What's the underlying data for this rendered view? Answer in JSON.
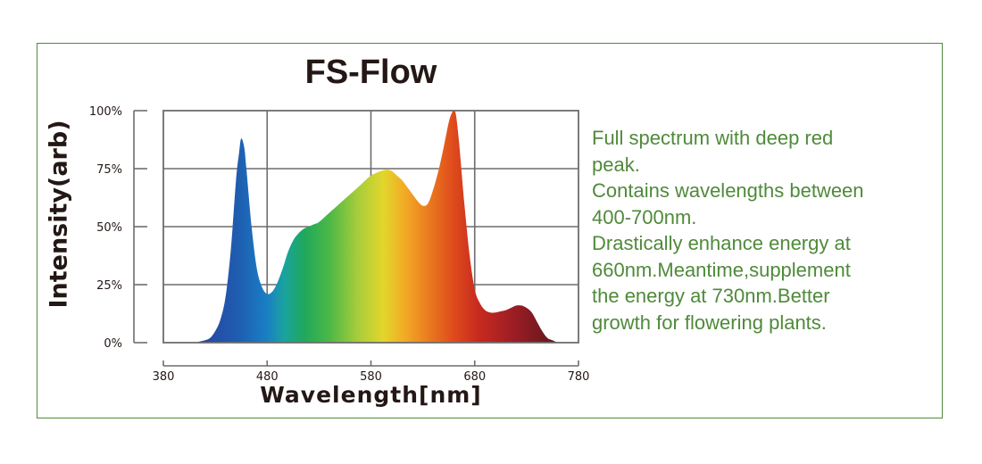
{
  "chart_data": {
    "type": "area",
    "title": "FS-Flow",
    "xlabel": "Wavelength[nm]",
    "ylabel": "Intensity(arb)",
    "xlim": [
      380,
      780
    ],
    "ylim": [
      0,
      100
    ],
    "xticks": [
      "380",
      "480",
      "580",
      "680",
      "780"
    ],
    "yticks": [
      "0%",
      "25%",
      "50%",
      "75%",
      "100%"
    ],
    "grid": true,
    "fill": "spectral-gradient",
    "series": [
      {
        "x": [
          410,
          415,
          420,
          425,
          430,
          435,
          440,
          445,
          450,
          453,
          455,
          458,
          460,
          465,
          470,
          475,
          480,
          485,
          490,
          495,
          500,
          505,
          510,
          515,
          520,
          525,
          530,
          540,
          550,
          560,
          570,
          580,
          590,
          595,
          600,
          605,
          610,
          615,
          620,
          625,
          630,
          635,
          640,
          645,
          650,
          655,
          658,
          660,
          662,
          665,
          670,
          675,
          680,
          685,
          690,
          695,
          700,
          705,
          710,
          715,
          720,
          725,
          730,
          735,
          740,
          745,
          750,
          755,
          760
        ],
        "y": [
          0,
          0.5,
          1,
          2,
          5,
          10,
          20,
          40,
          70,
          82,
          88,
          84,
          75,
          50,
          32,
          24,
          21,
          22,
          26,
          32,
          39,
          44,
          47,
          49,
          50,
          51,
          52,
          56,
          60,
          64,
          68,
          72,
          74,
          74.5,
          74,
          72,
          70,
          67,
          64,
          61,
          59,
          60,
          66,
          74,
          84,
          95,
          99,
          100,
          98,
          86,
          60,
          38,
          23,
          17,
          14,
          13,
          13,
          13.5,
          14,
          15,
          16,
          16,
          15,
          13,
          9,
          5,
          2,
          1,
          0
        ]
      }
    ]
  },
  "description": [
    "Full spectrum with deep red",
    "peak.",
    "Contains wavelengths between",
    "400-700nm.",
    "Drastically enhance energy at",
    "660nm.Meantime,supplement",
    "the energy at 730nm.Better",
    "growth for flowering plants."
  ],
  "colors": {
    "frame_border": "#4f8a3a",
    "description_text": "#4f8a3a",
    "grid": "#6d6d6d",
    "axis_text": "#231815"
  }
}
